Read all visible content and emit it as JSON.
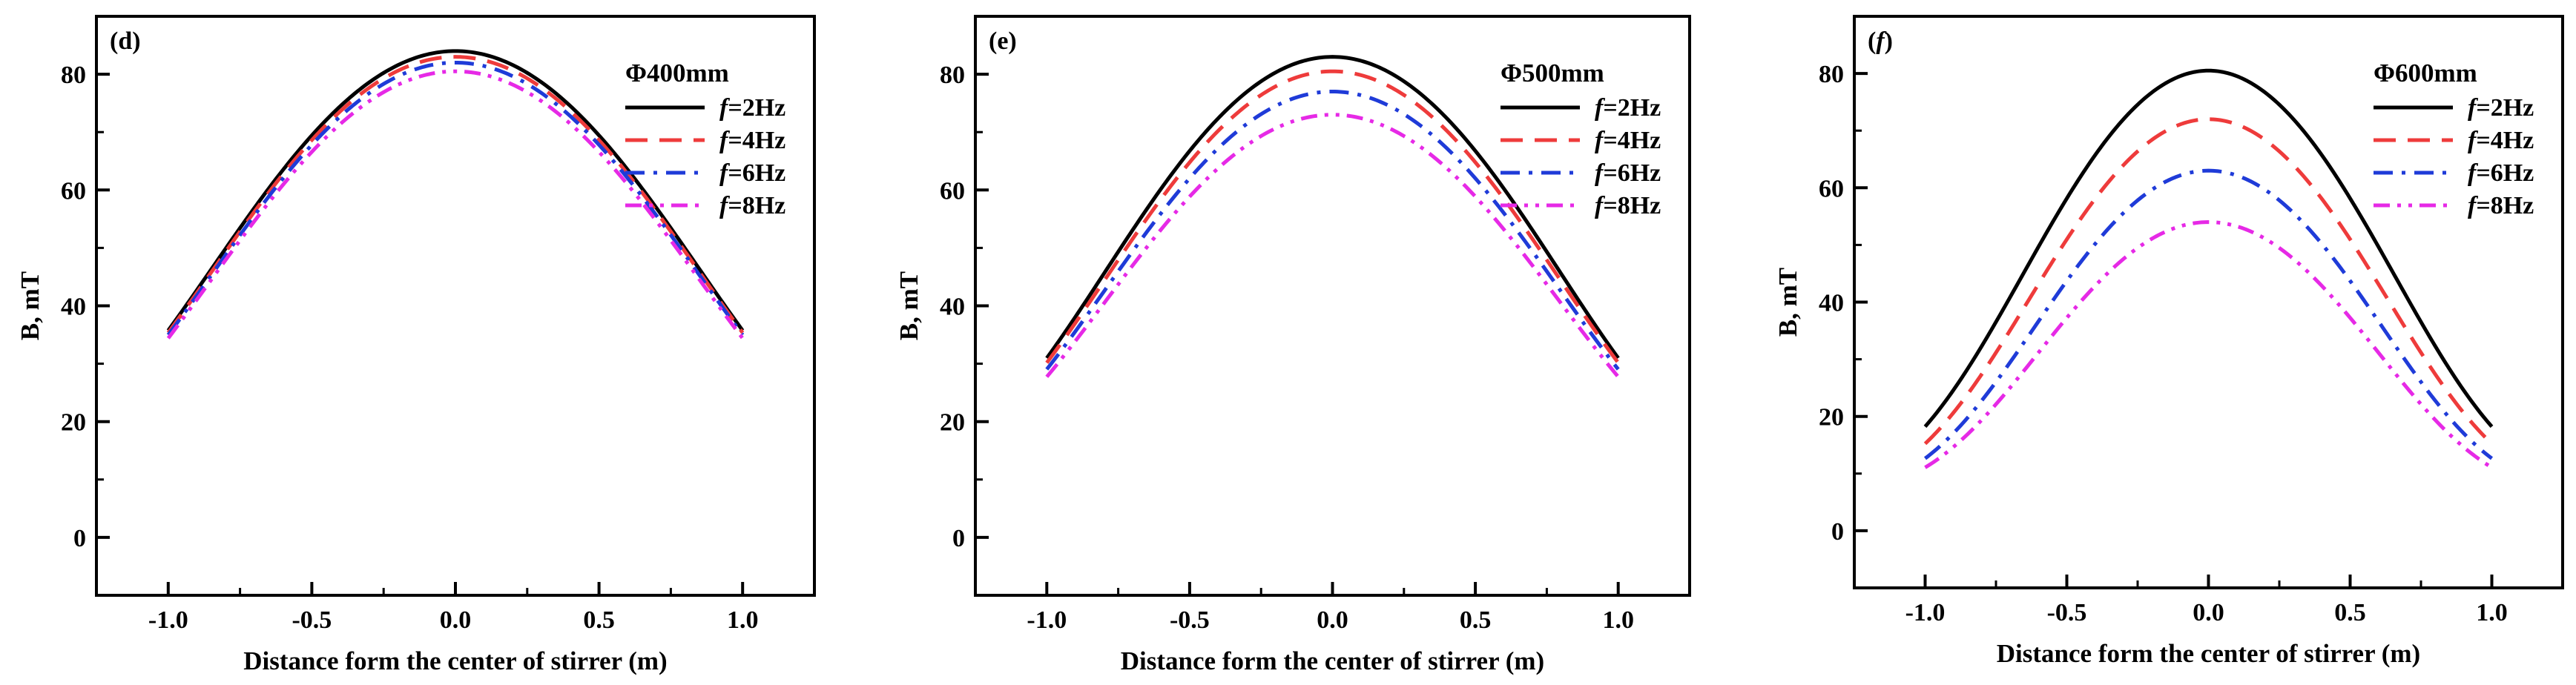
{
  "figure": {
    "background": "#ffffff",
    "series_colors": {
      "f=2Hz": "#000000",
      "f=4Hz": "#ee3b3b",
      "f=6Hz": "#1f3bd8",
      "f=8Hz": "#e629e6"
    }
  },
  "chart_data": [
    {
      "type": "line",
      "panel_tag": "(d)",
      "legend_title": "Φ400mm",
      "xlabel": "Distance form the center of stirrer (m)",
      "ylabel": "B, mT",
      "xlim": [
        -1.25,
        1.25
      ],
      "ylim": [
        -10,
        90
      ],
      "xticks": [
        -1.0,
        -0.5,
        0.0,
        0.5,
        1.0
      ],
      "xtick_labels": [
        "-1.0",
        "-0.5",
        "0.0",
        "0.5",
        "1.0"
      ],
      "yticks": [
        0,
        20,
        40,
        60,
        80
      ],
      "ytick_labels": [
        "0",
        "20",
        "40",
        "60",
        "80"
      ],
      "legend_position": "top-right",
      "series": [
        {
          "name": "f=2Hz",
          "label_prefix": "f",
          "label_suffix": "=2Hz",
          "color": "#000000",
          "dash": "solid",
          "peak": 84,
          "base": 6,
          "width": 0.8
        },
        {
          "name": "f=4Hz",
          "label_prefix": "f",
          "label_suffix": "=4Hz",
          "color": "#ee3b3b",
          "dash": "dash",
          "peak": 83,
          "base": 6,
          "width": 0.8
        },
        {
          "name": "f=6Hz",
          "label_prefix": "f",
          "label_suffix": "=6Hz",
          "color": "#1f3bd8",
          "dash": "dashdot",
          "peak": 82,
          "base": 6,
          "width": 0.8
        },
        {
          "name": "f=8Hz",
          "label_prefix": "f",
          "label_suffix": "=8Hz",
          "color": "#e629e6",
          "dash": "dashdotdot",
          "peak": 80.5,
          "base": 6,
          "width": 0.8
        }
      ]
    },
    {
      "type": "line",
      "panel_tag": "(e)",
      "legend_title": "Φ500mm",
      "xlabel": "Distance form the center of stirrer (m)",
      "ylabel": "B, mT",
      "xlim": [
        -1.25,
        1.25
      ],
      "ylim": [
        -10,
        90
      ],
      "xticks": [
        -1.0,
        -0.5,
        0.0,
        0.5,
        1.0
      ],
      "xtick_labels": [
        "-1.0",
        "-0.5",
        "0.0",
        "0.5",
        "1.0"
      ],
      "yticks": [
        0,
        20,
        40,
        60,
        80
      ],
      "ytick_labels": [
        "0",
        "20",
        "40",
        "60",
        "80"
      ],
      "legend_position": "top-right",
      "series": [
        {
          "name": "f=2Hz",
          "label_prefix": "f",
          "label_suffix": "=2Hz",
          "color": "#000000",
          "dash": "solid",
          "peak": 83,
          "base": 6,
          "width": 0.75
        },
        {
          "name": "f=4Hz",
          "label_prefix": "f",
          "label_suffix": "=4Hz",
          "color": "#ee3b3b",
          "dash": "dash",
          "peak": 80.5,
          "base": 6,
          "width": 0.75
        },
        {
          "name": "f=6Hz",
          "label_prefix": "f",
          "label_suffix": "=6Hz",
          "color": "#1f3bd8",
          "dash": "dashdot",
          "peak": 77,
          "base": 6,
          "width": 0.75
        },
        {
          "name": "f=8Hz",
          "label_prefix": "f",
          "label_suffix": "=8Hz",
          "color": "#e629e6",
          "dash": "dashdotdot",
          "peak": 73,
          "base": 6,
          "width": 0.75
        }
      ]
    },
    {
      "type": "line",
      "panel_tag": "(f)",
      "legend_title": "Φ600mm",
      "xlabel": "Distance form the center of stirrer (m)",
      "ylabel": "B, mT",
      "xlim": [
        -1.25,
        1.25
      ],
      "ylim": [
        -10,
        90
      ],
      "xticks": [
        -1.0,
        -0.5,
        0.0,
        0.5,
        1.0
      ],
      "xtick_labels": [
        "-1.0",
        "-0.5",
        "0.0",
        "0.5",
        "1.0"
      ],
      "yticks": [
        0,
        20,
        40,
        60,
        80
      ],
      "ytick_labels": [
        "0",
        "20",
        "40",
        "60",
        "80"
      ],
      "legend_position": "top-right",
      "series": [
        {
          "name": "f=2Hz",
          "label_prefix": "f",
          "label_suffix": "=2Hz",
          "color": "#000000",
          "dash": "solid",
          "peak": 80.5,
          "base": 6,
          "width": 0.62
        },
        {
          "name": "f=4Hz",
          "label_prefix": "f",
          "label_suffix": "=4Hz",
          "color": "#ee3b3b",
          "dash": "dash",
          "peak": 72,
          "base": 6,
          "width": 0.6
        },
        {
          "name": "f=6Hz",
          "label_prefix": "f",
          "label_suffix": "=6Hz",
          "color": "#1f3bd8",
          "dash": "dashdot",
          "peak": 63,
          "base": 6,
          "width": 0.58
        },
        {
          "name": "f=8Hz",
          "label_prefix": "f",
          "label_suffix": "=8Hz",
          "color": "#e629e6",
          "dash": "dashdotdot",
          "peak": 54,
          "base": 6,
          "width": 0.57
        }
      ]
    }
  ]
}
